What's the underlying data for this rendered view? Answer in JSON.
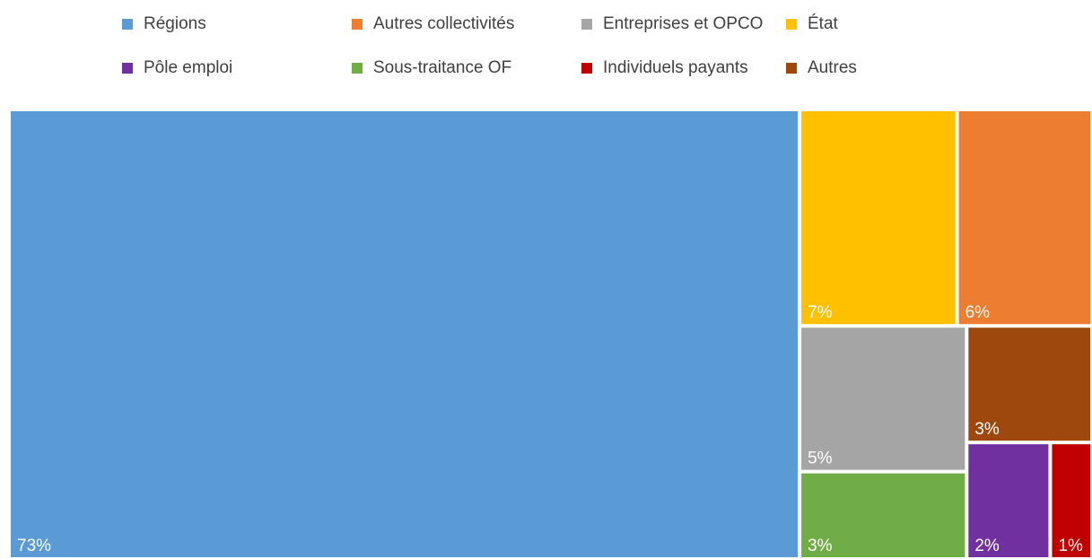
{
  "chart_data": {
    "type": "treemap",
    "categories": [
      "Régions",
      "Autres collectivités",
      "Entreprises et OPCO",
      "État",
      "Pôle emploi",
      "Sous-traitance OF",
      "Individuels payants",
      "Autres"
    ],
    "values": [
      73,
      6,
      5,
      7,
      2,
      3,
      1,
      3
    ],
    "value_labels": [
      "73%",
      "6%",
      "5%",
      "7%",
      "2%",
      "3%",
      "1%",
      "3%"
    ],
    "colors": [
      "#5b9bd5",
      "#ed7d31",
      "#a5a5a5",
      "#ffc000",
      "#7030a0",
      "#70ad47",
      "#c00000",
      "#9e480e"
    ]
  }
}
